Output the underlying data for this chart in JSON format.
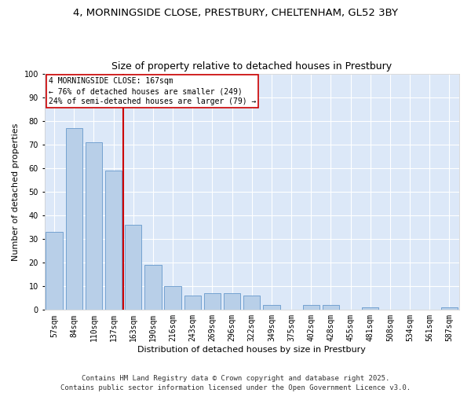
{
  "title_line1": "4, MORNINGSIDE CLOSE, PRESTBURY, CHELTENHAM, GL52 3BY",
  "title_line2": "Size of property relative to detached houses in Prestbury",
  "xlabel": "Distribution of detached houses by size in Prestbury",
  "ylabel": "Number of detached properties",
  "categories": [
    "57sqm",
    "84sqm",
    "110sqm",
    "137sqm",
    "163sqm",
    "190sqm",
    "216sqm",
    "243sqm",
    "269sqm",
    "296sqm",
    "322sqm",
    "349sqm",
    "375sqm",
    "402sqm",
    "428sqm",
    "455sqm",
    "481sqm",
    "508sqm",
    "534sqm",
    "561sqm",
    "587sqm"
  ],
  "values": [
    33,
    77,
    71,
    59,
    36,
    19,
    10,
    6,
    7,
    7,
    6,
    2,
    0,
    2,
    2,
    0,
    1,
    0,
    0,
    0,
    1
  ],
  "bar_color": "#b8cfe8",
  "bar_edge_color": "#6699cc",
  "vline_color": "#cc0000",
  "annotation_text": "4 MORNINGSIDE CLOSE: 167sqm\n← 76% of detached houses are smaller (249)\n24% of semi-detached houses are larger (79) →",
  "annotation_box_color": "#cc0000",
  "ylim": [
    0,
    100
  ],
  "yticks": [
    0,
    10,
    20,
    30,
    40,
    50,
    60,
    70,
    80,
    90,
    100
  ],
  "fig_bg_color": "#ffffff",
  "plot_bg_color": "#dce8f8",
  "grid_color": "#ffffff",
  "footer": "Contains HM Land Registry data © Crown copyright and database right 2025.\nContains public sector information licensed under the Open Government Licence v3.0.",
  "title_fontsize": 9.5,
  "subtitle_fontsize": 9,
  "label_fontsize": 8,
  "tick_fontsize": 7,
  "footer_fontsize": 6.5,
  "annot_fontsize": 7
}
